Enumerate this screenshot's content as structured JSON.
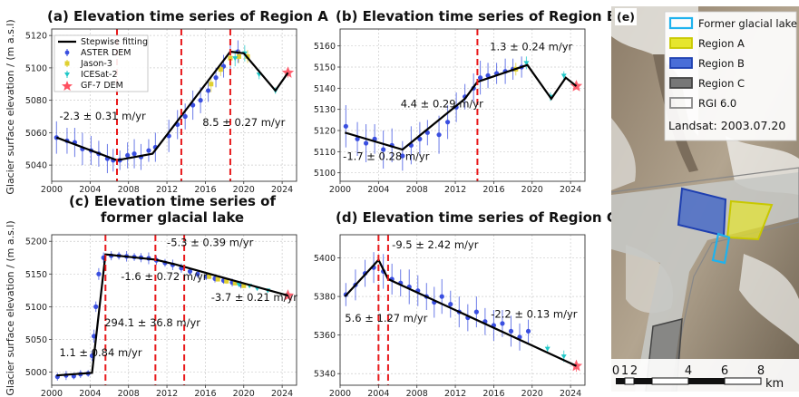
{
  "figure": {
    "y_axis_label": "Glacier surface elevation / (m a.s.l)",
    "legend": {
      "items": [
        "Stepwise fitting",
        "ASTER DEM",
        "Jason-3",
        "ICESat-2",
        "GF-7 DEM"
      ]
    },
    "map": {
      "label": "(e)",
      "legend": [
        "Former glacial lake",
        "Region A",
        "Region B",
        "Region C",
        "RGI 6.0"
      ],
      "legend_colors": [
        "#1fb2ee",
        "#e6e62e",
        "#2f58c8",
        "#555555",
        "#888888"
      ],
      "landsat": "Landsat: 2003.07.20",
      "scale_labels": [
        "0",
        "1",
        "2",
        "4",
        "6",
        "8"
      ],
      "scale_unit": "km"
    }
  },
  "colors": {
    "fit": "#000000",
    "aster": "#3a4fe0",
    "jason": "#e0d030",
    "icesat": "#20c8c8",
    "gf7": "#ff5060",
    "break": "#e8191b",
    "grid": "#cccccc"
  },
  "chart_data": [
    {
      "type": "line",
      "panel": "a",
      "title": "(a) Elevation time series of Region A",
      "xlim": [
        2000,
        2025.5
      ],
      "ylim": [
        5030,
        5124
      ],
      "xticks": [
        2000,
        2004,
        2008,
        2012,
        2016,
        2020,
        2024
      ],
      "yticks": [
        5040,
        5060,
        5080,
        5100,
        5120
      ],
      "fit": [
        [
          2000.5,
          5057
        ],
        [
          2006.8,
          5043
        ],
        [
          2010.5,
          5047
        ],
        [
          2018.6,
          5110
        ],
        [
          2020,
          5109
        ],
        [
          2023.3,
          5086
        ],
        [
          2024.6,
          5097
        ]
      ],
      "breaks": [
        2006.8,
        2013.5,
        2018.6
      ],
      "annotations": [
        {
          "text": "-2.3 ± 0.31 m/yr",
          "x": 2000.8,
          "y": 5068
        },
        {
          "text": "8.5 ± 0.27 m/yr",
          "x": 2015.7,
          "y": 5064
        }
      ],
      "aster": [
        [
          2000.5,
          5057,
          10
        ],
        [
          2001.6,
          5055,
          8
        ],
        [
          2002.4,
          5054,
          9
        ],
        [
          2003.2,
          5050,
          10
        ],
        [
          2004.1,
          5049,
          9
        ],
        [
          2004.9,
          5047,
          8
        ],
        [
          2005.8,
          5044,
          9
        ],
        [
          2006.4,
          5043,
          7
        ],
        [
          2007.1,
          5043,
          6
        ],
        [
          2007.9,
          5046,
          8
        ],
        [
          2008.6,
          5047,
          9
        ],
        [
          2009.3,
          5045,
          8
        ],
        [
          2010.1,
          5049,
          7
        ],
        [
          2010.8,
          5051,
          9
        ],
        [
          2012.2,
          5058,
          10
        ],
        [
          2013.1,
          5065,
          9
        ],
        [
          2013.9,
          5070,
          8
        ],
        [
          2014.7,
          5077,
          9
        ],
        [
          2015.5,
          5080,
          8
        ],
        [
          2016.3,
          5086,
          7
        ],
        [
          2017.1,
          5094,
          6
        ],
        [
          2017.9,
          5101,
          7
        ],
        [
          2018.6,
          5106,
          8
        ],
        [
          2019.4,
          5110,
          7
        ]
      ],
      "jason": [
        [
          2016.6,
          5090,
          5
        ],
        [
          2017.6,
          5099,
          4
        ],
        [
          2018.6,
          5106,
          5
        ],
        [
          2019.5,
          5107,
          4
        ],
        [
          2020.4,
          5107,
          4
        ]
      ],
      "icesat": [
        [
          2019.1,
          5106,
          5
        ],
        [
          2020.1,
          5109,
          5
        ],
        [
          2021.6,
          5096,
          3
        ],
        [
          2023.3,
          5086,
          2
        ]
      ],
      "gf7": [
        [
          2024.6,
          5097,
          3
        ]
      ]
    },
    {
      "type": "line",
      "panel": "b",
      "title": "(b) Elevation time series of Region B",
      "xlim": [
        2000,
        2025.5
      ],
      "ylim": [
        5096,
        5168
      ],
      "xticks": [
        2000,
        2004,
        2008,
        2012,
        2016,
        2020,
        2024
      ],
      "yticks": [
        5100,
        5110,
        5120,
        5130,
        5140,
        5150,
        5160
      ],
      "fit": [
        [
          2000.5,
          5119
        ],
        [
          2006.5,
          5111
        ],
        [
          2013,
          5135
        ],
        [
          2014.3,
          5143
        ],
        [
          2019.5,
          5151
        ],
        [
          2022,
          5135
        ],
        [
          2023.5,
          5145
        ],
        [
          2024.6,
          5141
        ]
      ],
      "breaks": [
        2014.3
      ],
      "annotations": [
        {
          "text": "1.3 ± 0.24 m/yr",
          "x": 2015.6,
          "y": 5158
        },
        {
          "text": "4.4 ± 0.29 m/yr",
          "x": 2006.3,
          "y": 5131
        },
        {
          "text": "-1.7 ± 0.28 m/yr",
          "x": 2000.3,
          "y": 5106
        }
      ],
      "aster": [
        [
          2000.6,
          5122,
          10
        ],
        [
          2001.8,
          5116,
          8
        ],
        [
          2002.7,
          5114,
          9
        ],
        [
          2003.6,
          5116,
          7
        ],
        [
          2004.5,
          5111,
          9
        ],
        [
          2005.4,
          5113,
          8
        ],
        [
          2006.5,
          5108,
          7
        ],
        [
          2007.4,
          5113,
          9
        ],
        [
          2008.3,
          5116,
          8
        ],
        [
          2009.1,
          5119,
          6
        ],
        [
          2010.3,
          5118,
          9
        ],
        [
          2011.2,
          5124,
          8
        ],
        [
          2012.1,
          5131,
          7
        ],
        [
          2013.0,
          5136,
          6
        ],
        [
          2013.9,
          5140,
          7
        ],
        [
          2014.6,
          5145,
          8
        ],
        [
          2015.4,
          5146,
          6
        ],
        [
          2016.3,
          5147,
          5
        ],
        [
          2017.2,
          5148,
          6
        ],
        [
          2018.0,
          5149,
          5
        ],
        [
          2018.9,
          5150,
          5
        ]
      ],
      "jason": [
        [
          2018.3,
          5149,
          3
        ]
      ],
      "icesat": [
        [
          2019.4,
          5152,
          3
        ],
        [
          2021.9,
          5136,
          2
        ],
        [
          2023.3,
          5146,
          2
        ]
      ],
      "gf7": [
        [
          2024.6,
          5141,
          1.5
        ]
      ]
    },
    {
      "type": "line",
      "panel": "c",
      "title": "(c) Elevation time series of\nformer glacial lake",
      "xlim": [
        2000,
        2025.5
      ],
      "ylim": [
        4980,
        5210
      ],
      "xticks": [
        2000,
        2004,
        2008,
        2012,
        2016,
        2020,
        2024
      ],
      "yticks": [
        5000,
        5050,
        5100,
        5150,
        5200
      ],
      "fit": [
        [
          2000.5,
          4995
        ],
        [
          2004.2,
          4999
        ],
        [
          2005.6,
          5180
        ],
        [
          2010.8,
          5172
        ],
        [
          2012.8,
          5165
        ],
        [
          2024.6,
          5117
        ]
      ],
      "breaks": [
        2005.6,
        2010.8,
        2013.8
      ],
      "annotations": [
        {
          "text": "-5.3 ± 0.39 m/yr",
          "x": 2012.0,
          "y": 5193
        },
        {
          "text": "-1.6 ± 0.72 m/yr",
          "x": 2007.2,
          "y": 5141
        },
        {
          "text": "294.1 ± 36.8 m/yr",
          "x": 2005.5,
          "y": 5070
        },
        {
          "text": "-3.7 ± 0.21 m/yr",
          "x": 2016.6,
          "y": 5109
        },
        {
          "text": "1.1 ± 0.84 m/yr",
          "x": 2000.8,
          "y": 5024
        }
      ],
      "aster": [
        [
          2000.6,
          4993,
          6
        ],
        [
          2001.5,
          4995,
          7
        ],
        [
          2002.3,
          4994,
          5
        ],
        [
          2003.0,
          4997,
          6
        ],
        [
          2003.8,
          4998,
          5
        ],
        [
          2004.2,
          5025,
          8
        ],
        [
          2004.4,
          5055,
          10
        ],
        [
          2004.6,
          5100,
          8
        ],
        [
          2004.9,
          5150,
          9
        ],
        [
          2005.4,
          5175,
          8
        ],
        [
          2006.2,
          5178,
          7
        ],
        [
          2007.0,
          5178,
          6
        ],
        [
          2007.8,
          5177,
          8
        ],
        [
          2008.6,
          5176,
          6
        ],
        [
          2009.3,
          5175,
          7
        ],
        [
          2010.1,
          5174,
          9
        ],
        [
          2010.9,
          5171,
          7
        ],
        [
          2011.8,
          5167,
          6
        ],
        [
          2012.6,
          5164,
          8
        ],
        [
          2013.5,
          5159,
          7
        ],
        [
          2014.4,
          5154,
          6
        ],
        [
          2015.2,
          5150,
          6
        ],
        [
          2016.1,
          5146,
          5
        ],
        [
          2017.0,
          5143,
          6
        ],
        [
          2017.9,
          5140,
          5
        ],
        [
          2018.8,
          5137,
          6
        ],
        [
          2019.7,
          5134,
          6
        ]
      ],
      "jason": [
        [
          2016.4,
          5146,
          4
        ],
        [
          2017.3,
          5142,
          3
        ],
        [
          2018.2,
          5139,
          4
        ],
        [
          2019.1,
          5136,
          3
        ],
        [
          2020.0,
          5132,
          3
        ]
      ],
      "icesat": [
        [
          2019.5,
          5134,
          3
        ],
        [
          2020.6,
          5132,
          3
        ],
        [
          2021.4,
          5128,
          3
        ],
        [
          2022.5,
          5125,
          3
        ]
      ],
      "gf7": [
        [
          2024.6,
          5117,
          2
        ]
      ]
    },
    {
      "type": "line",
      "panel": "d",
      "title": "(d) Elevation time series of Region C",
      "xlim": [
        2000,
        2025.5
      ],
      "ylim": [
        5334,
        5412
      ],
      "xticks": [
        2000,
        2004,
        2008,
        2012,
        2016,
        2020,
        2024
      ],
      "yticks": [
        5340,
        5360,
        5380,
        5400
      ],
      "fit": [
        [
          2000.5,
          5380
        ],
        [
          2004.0,
          5399
        ],
        [
          2005.0,
          5389
        ],
        [
          2024.6,
          5344
        ]
      ],
      "breaks": [
        2004.0,
        2005.0
      ],
      "annotations": [
        {
          "text": "-9.5 ± 2.42 m/yr",
          "x": 2005.4,
          "y": 5405
        },
        {
          "text": "5.6 ± 1.27 m/yr",
          "x": 2000.5,
          "y": 5367
        },
        {
          "text": "-2.2 ± 0.13 m/yr",
          "x": 2015.7,
          "y": 5369
        }
      ],
      "aster": [
        [
          2000.6,
          5381,
          6
        ],
        [
          2001.6,
          5386,
          8
        ],
        [
          2002.6,
          5392,
          7
        ],
        [
          2003.5,
          5395,
          8
        ],
        [
          2004.5,
          5393,
          9
        ],
        [
          2005.4,
          5389,
          8
        ],
        [
          2006.3,
          5387,
          7
        ],
        [
          2007.2,
          5385,
          9
        ],
        [
          2008.1,
          5383,
          8
        ],
        [
          2009.0,
          5380,
          7
        ],
        [
          2009.8,
          5377,
          8
        ],
        [
          2010.6,
          5380,
          9
        ],
        [
          2011.5,
          5376,
          7
        ],
        [
          2012.4,
          5372,
          8
        ],
        [
          2013.3,
          5369,
          7
        ],
        [
          2014.2,
          5372,
          8
        ],
        [
          2015.1,
          5367,
          7
        ],
        [
          2016.0,
          5365,
          8
        ],
        [
          2016.9,
          5366,
          7
        ],
        [
          2017.8,
          5362,
          8
        ],
        [
          2018.7,
          5359,
          7
        ],
        [
          2019.6,
          5362,
          6
        ]
      ],
      "jason": [],
      "icesat": [
        [
          2021.6,
          5353,
          2
        ],
        [
          2023.3,
          5349,
          3
        ]
      ],
      "gf7": [
        [
          2024.6,
          5344,
          3
        ]
      ]
    }
  ]
}
